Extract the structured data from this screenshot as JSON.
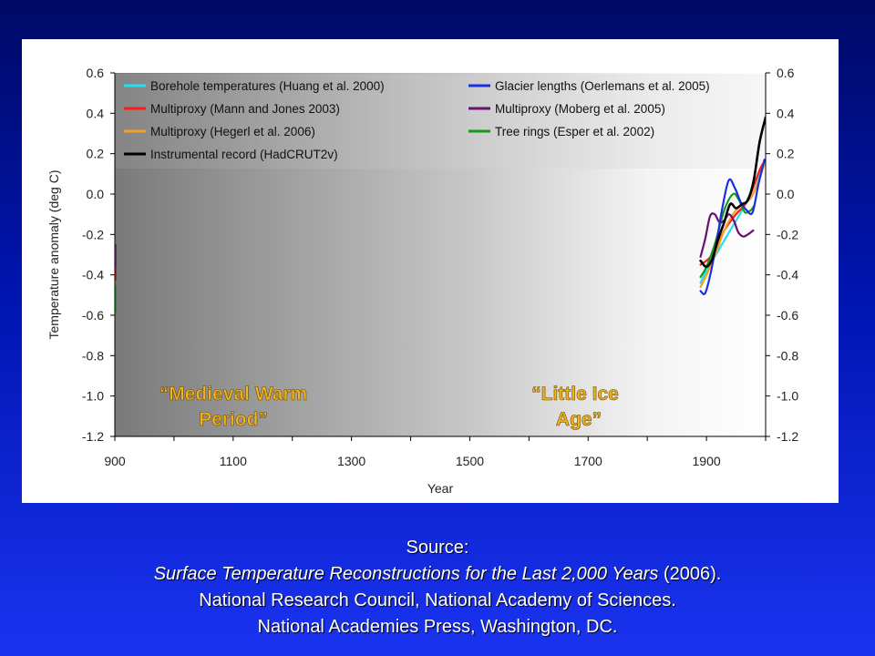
{
  "chart_data": {
    "type": "line",
    "xlabel": "Year",
    "ylabel": "Temperature anomaly (deg C)",
    "xlim": [
      900,
      2000
    ],
    "ylim": [
      -1.2,
      0.6
    ],
    "xticks": [
      900,
      1100,
      1300,
      1500,
      1700,
      1900
    ],
    "yticks": [
      0.6,
      0.4,
      0.2,
      0.0,
      -0.2,
      -0.4,
      -0.6,
      -0.8,
      -1.0,
      -1.2
    ],
    "ytick_labels": [
      "0.6",
      "0.4",
      "0.2",
      "0.0",
      "-0.2",
      "-0.4",
      "-0.6",
      "-0.8",
      "-1.0",
      "-1.2"
    ],
    "secondary_y_axis": true,
    "grid": false,
    "legend_placement": "top",
    "background": "gradient dark gray (left) to white (right)",
    "annotations": [
      {
        "lines": [
          "“Medieval Warm",
          "Period”"
        ],
        "color": "#f2b31d"
      },
      {
        "lines": [
          "“Little Ice",
          "Age”"
        ],
        "color": "#f2b31d"
      }
    ],
    "series": [
      {
        "name": "Borehole temperatures (Huang et al. 2000)",
        "color": "#22e0f0",
        "x": [
          1890,
          1900,
          1920,
          1940,
          1960,
          1980,
          2000
        ],
        "y": [
          -0.44,
          -0.38,
          -0.28,
          -0.18,
          -0.08,
          0.04,
          0.16
        ]
      },
      {
        "name": "Glacier lengths (Oerlemans et al. 2005)",
        "color": "#1a2fe0",
        "x": [
          1890,
          1898,
          1908,
          1918,
          1928,
          1938,
          1948,
          1958,
          1968,
          1978,
          1988,
          1998
        ],
        "y": [
          -0.48,
          -0.49,
          -0.38,
          -0.22,
          -0.05,
          0.07,
          0.03,
          -0.04,
          -0.08,
          -0.09,
          0.05,
          0.17
        ]
      },
      {
        "name": "Multiproxy (Mann and Jones 2003)",
        "color": "#ff1a1a",
        "x": [
          1890,
          1910,
          1930,
          1950,
          1970,
          1990,
          2000
        ],
        "y": [
          -0.35,
          -0.3,
          -0.18,
          -0.1,
          -0.03,
          0.12,
          0.17
        ]
      },
      {
        "name": "Multiproxy (Moberg et al. 2005)",
        "color": "#6a1070",
        "x": [
          1890,
          1898,
          1906,
          1914,
          1922,
          1930,
          1938,
          1946,
          1954,
          1962,
          1970,
          1979
        ],
        "y": [
          -0.31,
          -0.22,
          -0.11,
          -0.1,
          -0.14,
          -0.13,
          -0.1,
          -0.13,
          -0.19,
          -0.21,
          -0.2,
          -0.18
        ]
      },
      {
        "name": "Multiproxy (Hegerl et al. 2006)",
        "color": "#f5a020",
        "x": [
          1890,
          1900,
          1915,
          1930,
          1945,
          1960,
          1975,
          1990,
          1998
        ],
        "y": [
          -0.46,
          -0.4,
          -0.3,
          -0.18,
          -0.1,
          -0.05,
          -0.02,
          0.08,
          0.15
        ]
      },
      {
        "name": "Tree rings (Esper et al. 2002)",
        "color": "#129a1a",
        "x": [
          1890,
          1900,
          1915,
          1930,
          1945,
          1955,
          1965,
          1975,
          1980
        ],
        "y": [
          -0.41,
          -0.36,
          -0.24,
          -0.08,
          0.0,
          -0.03,
          -0.09,
          -0.08,
          -0.06
        ]
      },
      {
        "name": "Instrumental record (HadCRUT2v)",
        "color": "#000000",
        "x": [
          1890,
          1900,
          1910,
          1920,
          1930,
          1940,
          1950,
          1960,
          1970,
          1980,
          1990,
          2000
        ],
        "y": [
          -0.33,
          -0.36,
          -0.32,
          -0.22,
          -0.14,
          -0.05,
          -0.07,
          -0.05,
          -0.03,
          0.07,
          0.26,
          0.38
        ]
      }
    ]
  },
  "caption": {
    "line1": "Source:",
    "line2_title": "Surface Temperature Reconstructions for the Last 2,000 Years",
    "line2_year": " (2006).",
    "line3": "National Research Council, National Academy of Sciences.",
    "line4": "National Academies Press, Washington, DC."
  }
}
